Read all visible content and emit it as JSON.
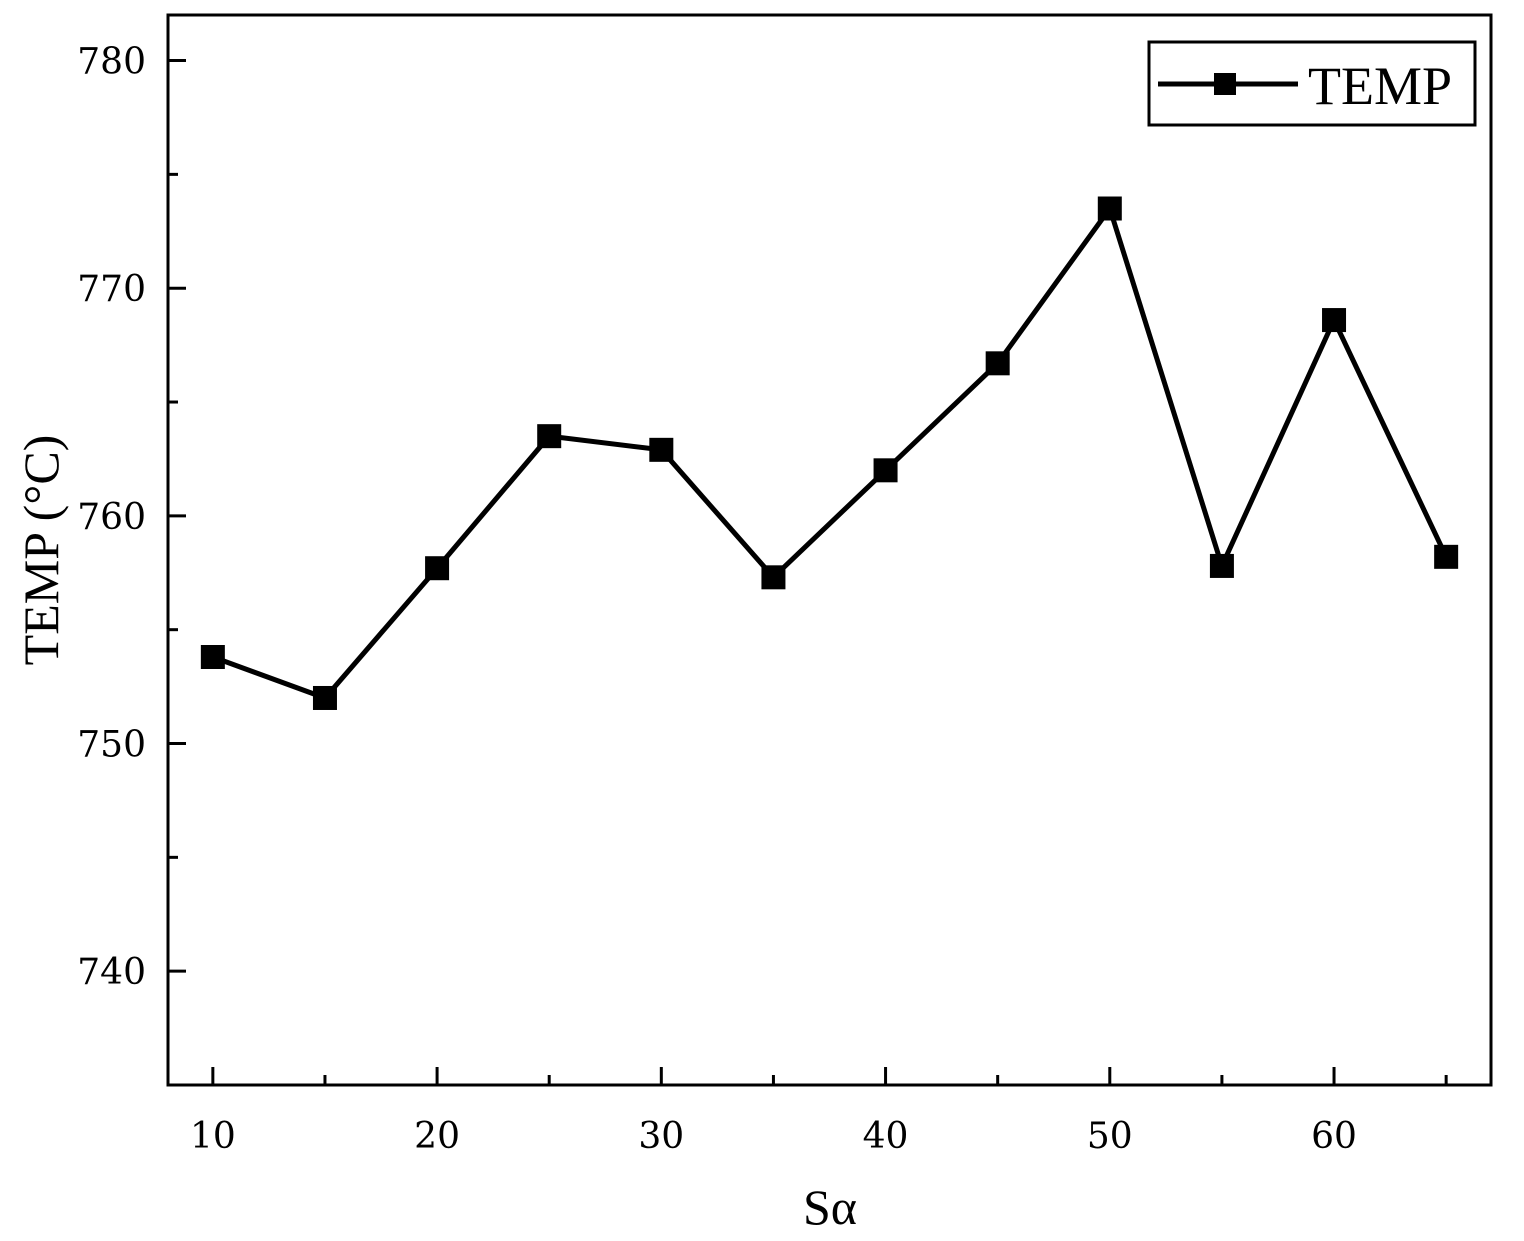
{
  "chart_data": {
    "type": "line",
    "xlabel": "Sα",
    "ylabel": "TEMP (°C)",
    "xlim": [
      8,
      67
    ],
    "ylim": [
      735,
      782
    ],
    "x_ticks": [
      10,
      20,
      30,
      40,
      50,
      60
    ],
    "x_minor_ticks": [
      15,
      25,
      35,
      45,
      55,
      65
    ],
    "y_ticks": [
      740,
      750,
      760,
      770,
      780
    ],
    "y_minor_ticks": [
      745,
      755,
      765,
      775
    ],
    "grid": false,
    "legend": {
      "position": "top-right",
      "marker": "square"
    },
    "series": [
      {
        "name": "TEMP",
        "color": "#000000",
        "marker": "square",
        "x": [
          10,
          15,
          20,
          25,
          30,
          35,
          40,
          45,
          50,
          55,
          60,
          65
        ],
        "y": [
          753.8,
          752.0,
          757.7,
          763.5,
          762.9,
          757.3,
          762.0,
          766.7,
          773.5,
          757.8,
          768.6,
          758.2
        ]
      }
    ]
  }
}
